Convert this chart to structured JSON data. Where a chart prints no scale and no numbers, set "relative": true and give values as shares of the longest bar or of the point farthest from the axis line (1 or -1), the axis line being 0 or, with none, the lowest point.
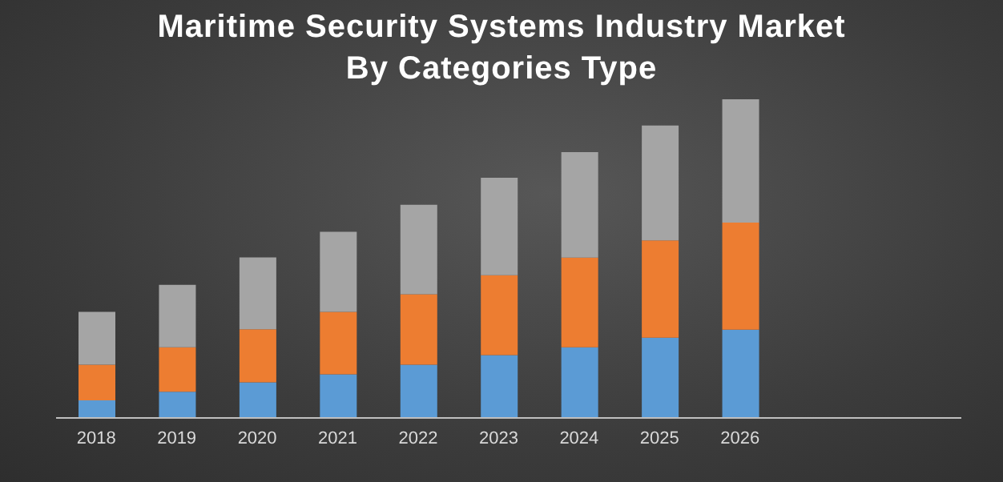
{
  "chart_data": {
    "type": "bar",
    "title": "Maritime Security Systems Industry Market By Categories Type",
    "stacked": true,
    "relative": true,
    "legend": false,
    "grid": false,
    "categories": [
      "2018",
      "2019",
      "2020",
      "2021",
      "2022",
      "2023",
      "2024",
      "2025",
      "2026"
    ],
    "series": [
      {
        "color": "#5b9bd5",
        "values": [
          0.055,
          0.082,
          0.112,
          0.137,
          0.167,
          0.197,
          0.222,
          0.252,
          0.277
        ]
      },
      {
        "color": "#ed7d31",
        "values": [
          0.112,
          0.14,
          0.166,
          0.196,
          0.221,
          0.251,
          0.281,
          0.305,
          0.336
        ]
      },
      {
        "color": "#a5a5a5",
        "values": [
          0.166,
          0.196,
          0.226,
          0.251,
          0.281,
          0.306,
          0.331,
          0.361,
          0.387
        ]
      }
    ]
  }
}
